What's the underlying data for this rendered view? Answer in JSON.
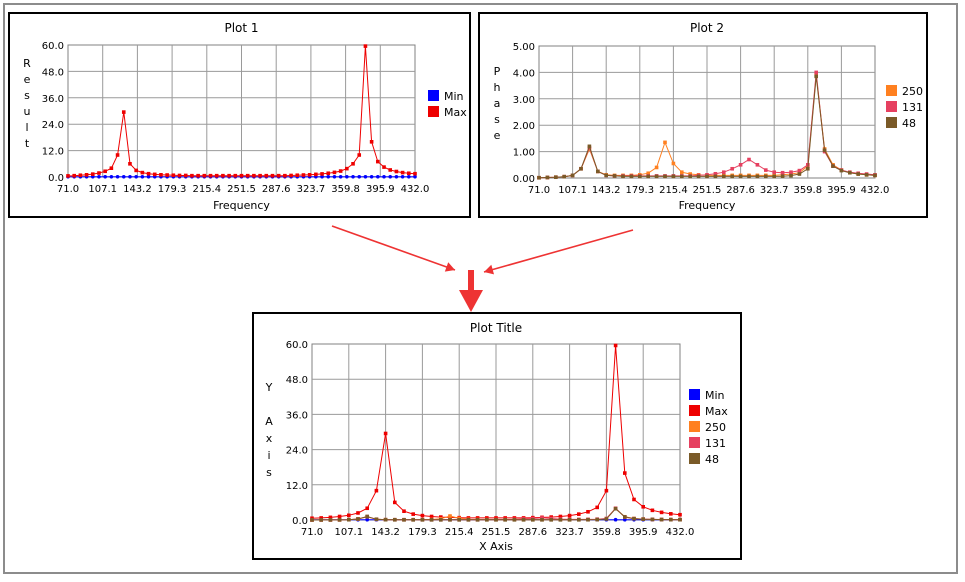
{
  "chart_data": [
    {
      "type": "line",
      "title": "Plot 1",
      "xlabel": "Frequency",
      "ylabel": "Result",
      "ylabel_letters": [
        "R",
        "e",
        "s",
        "u",
        "l",
        "t"
      ],
      "xlim": [
        71.0,
        432.0
      ],
      "ylim": [
        0,
        60
      ],
      "x_ticks": [
        "71.0",
        "107.1",
        "143.2",
        "179.3",
        "215.4",
        "251.5",
        "287.6",
        "323.7",
        "359.8",
        "395.9",
        "432.0"
      ],
      "y_ticks": [
        "0.0",
        "12.0",
        "24.0",
        "36.0",
        "48.0",
        "60.0"
      ],
      "grid": true,
      "legend_position": "right",
      "series": [
        {
          "name": "Min",
          "color": "#0000ff",
          "shape": "circle",
          "values": [
            0.1,
            0.1,
            0.1,
            0.1,
            0.1,
            0.1,
            0.1,
            0.1,
            0.1,
            0.1,
            0.1,
            0.1,
            0.1,
            0.1,
            0.1,
            0.1,
            0.1,
            0.1,
            0.1,
            0.1,
            0.1,
            0.1,
            0.1,
            0.1,
            0.1,
            0.1,
            0.1,
            0.1,
            0.1,
            0.1,
            0.1,
            0.1,
            0.1,
            0.1,
            0.1,
            0.1,
            0.1,
            0.1,
            0.1,
            0.1,
            0.1,
            0.1,
            0.1,
            0.1,
            0.1,
            0.1,
            0.1,
            0.1,
            0.1,
            0.1,
            0.1,
            0.1,
            0.1,
            0.1,
            0.1,
            0.1,
            0.1
          ]
        },
        {
          "name": "Max",
          "color": "#ee0000",
          "shape": "square",
          "values": [
            0.5,
            0.6,
            0.8,
            1.0,
            1.3,
            1.8,
            2.6,
            4.0,
            10.0,
            29.5,
            6.0,
            3.0,
            2.0,
            1.5,
            1.2,
            1.0,
            0.9,
            0.8,
            0.7,
            0.7,
            0.6,
            0.6,
            0.6,
            0.6,
            0.6,
            0.6,
            0.6,
            0.6,
            0.6,
            0.6,
            0.6,
            0.6,
            0.6,
            0.6,
            0.6,
            0.6,
            0.7,
            0.8,
            0.9,
            1.0,
            1.2,
            1.4,
            1.7,
            2.1,
            2.7,
            3.8,
            6.0,
            10.0,
            59.5,
            16.0,
            7.0,
            4.5,
            3.2,
            2.5,
            2.0,
            1.7,
            1.5
          ]
        }
      ],
      "x_count": 57
    },
    {
      "type": "line",
      "title": "Plot 2",
      "xlabel": "Frequency",
      "ylabel": "Phase",
      "ylabel_letters": [
        "P",
        "h",
        "a",
        "s",
        "e"
      ],
      "xlim": [
        71.0,
        432.0
      ],
      "ylim": [
        0,
        5
      ],
      "x_ticks": [
        "71.0",
        "107.1",
        "143.2",
        "179.3",
        "215.4",
        "251.5",
        "287.6",
        "323.7",
        "359.8",
        "395.9",
        "432.0"
      ],
      "y_ticks": [
        "0.00",
        "1.00",
        "2.00",
        "3.00",
        "4.00",
        "5.00"
      ],
      "grid": true,
      "legend_position": "right",
      "series": [
        {
          "name": "250",
          "color": "#ff8020",
          "shape": "square",
          "values": [
            0.01,
            0.02,
            0.03,
            0.05,
            0.1,
            0.35,
            1.1,
            0.25,
            0.12,
            0.1,
            0.1,
            0.1,
            0.12,
            0.18,
            0.4,
            1.35,
            0.55,
            0.22,
            0.15,
            0.12,
            0.1,
            0.1,
            0.1,
            0.1,
            0.1,
            0.1,
            0.1,
            0.1,
            0.1,
            0.12,
            0.15,
            0.2,
            0.45,
            3.9,
            1.1,
            0.5,
            0.3,
            0.2,
            0.15,
            0.12,
            0.1
          ]
        },
        {
          "name": "131",
          "color": "#e64060",
          "shape": "square",
          "values": [
            0.01,
            0.02,
            0.03,
            0.05,
            0.1,
            0.35,
            1.15,
            0.25,
            0.1,
            0.08,
            0.08,
            0.08,
            0.08,
            0.08,
            0.08,
            0.08,
            0.08,
            0.08,
            0.08,
            0.1,
            0.12,
            0.16,
            0.22,
            0.35,
            0.5,
            0.7,
            0.5,
            0.3,
            0.22,
            0.2,
            0.22,
            0.28,
            0.5,
            4.0,
            1.0,
            0.45,
            0.3,
            0.22,
            0.18,
            0.15,
            0.12
          ]
        },
        {
          "name": "48",
          "color": "#7a5a28",
          "shape": "square",
          "values": [
            0.01,
            0.02,
            0.03,
            0.05,
            0.1,
            0.35,
            1.2,
            0.25,
            0.1,
            0.08,
            0.06,
            0.06,
            0.06,
            0.06,
            0.06,
            0.06,
            0.06,
            0.06,
            0.06,
            0.06,
            0.06,
            0.06,
            0.06,
            0.06,
            0.06,
            0.06,
            0.06,
            0.06,
            0.06,
            0.07,
            0.09,
            0.15,
            0.35,
            3.85,
            1.05,
            0.45,
            0.28,
            0.2,
            0.15,
            0.12,
            0.1
          ]
        }
      ],
      "x_count": 41
    },
    {
      "type": "line",
      "title": "Plot Title",
      "xlabel": "X Axis",
      "ylabel": "Y Axis",
      "ylabel_letters": [
        "Y",
        "",
        "A",
        "x",
        "i",
        "s"
      ],
      "xlim": [
        71.0,
        432.0
      ],
      "ylim": [
        0,
        60
      ],
      "x_ticks": [
        "71.0",
        "107.1",
        "143.2",
        "179.3",
        "215.4",
        "251.5",
        "287.6",
        "323.7",
        "359.8",
        "395.9",
        "432.0"
      ],
      "y_ticks": [
        "0.0",
        "12.0",
        "24.0",
        "36.0",
        "48.0",
        "60.0"
      ],
      "grid": true,
      "legend_position": "right",
      "series": [
        {
          "name": "Min",
          "color": "#0000ff",
          "shape": "circle",
          "values": [
            0.1,
            0.1,
            0.1,
            0.1,
            0.1,
            0.1,
            0.1,
            0.1,
            0.1,
            0.1,
            0.1,
            0.1,
            0.1,
            0.1,
            0.1,
            0.1,
            0.1,
            0.1,
            0.1,
            0.1,
            0.1,
            0.1,
            0.1,
            0.1,
            0.1,
            0.1,
            0.1,
            0.1,
            0.1,
            0.1,
            0.1,
            0.1,
            0.1,
            0.1,
            0.1,
            0.1,
            0.1,
            0.1,
            0.1,
            0.1,
            0.1
          ]
        },
        {
          "name": "Max",
          "color": "#ee0000",
          "shape": "square",
          "values": [
            0.6,
            0.7,
            0.9,
            1.2,
            1.6,
            2.4,
            4.0,
            10.0,
            29.5,
            6.0,
            3.0,
            2.0,
            1.5,
            1.2,
            1.0,
            0.9,
            0.8,
            0.7,
            0.7,
            0.7,
            0.7,
            0.7,
            0.7,
            0.7,
            0.8,
            0.9,
            1.0,
            1.2,
            1.5,
            2.0,
            2.8,
            4.3,
            10.0,
            59.5,
            16.0,
            7.0,
            4.5,
            3.3,
            2.6,
            2.1,
            1.8
          ]
        },
        {
          "name": "250",
          "color": "#ff8020",
          "shape": "square",
          "values": [
            0.01,
            0.02,
            0.03,
            0.05,
            0.1,
            0.35,
            1.1,
            0.25,
            0.12,
            0.1,
            0.1,
            0.1,
            0.12,
            0.18,
            0.4,
            1.35,
            0.55,
            0.22,
            0.15,
            0.12,
            0.1,
            0.1,
            0.1,
            0.1,
            0.1,
            0.1,
            0.1,
            0.1,
            0.1,
            0.12,
            0.15,
            0.2,
            0.45,
            3.9,
            1.1,
            0.5,
            0.3,
            0.2,
            0.15,
            0.12,
            0.1
          ]
        },
        {
          "name": "131",
          "color": "#e64060",
          "shape": "square",
          "values": [
            0.01,
            0.02,
            0.03,
            0.05,
            0.1,
            0.35,
            1.15,
            0.25,
            0.1,
            0.08,
            0.08,
            0.08,
            0.08,
            0.08,
            0.08,
            0.08,
            0.08,
            0.08,
            0.08,
            0.1,
            0.12,
            0.16,
            0.22,
            0.35,
            0.5,
            0.7,
            0.5,
            0.3,
            0.22,
            0.2,
            0.22,
            0.28,
            0.5,
            4.0,
            1.0,
            0.45,
            0.3,
            0.22,
            0.18,
            0.15,
            0.12
          ]
        },
        {
          "name": "48",
          "color": "#7a5a28",
          "shape": "square",
          "values": [
            0.01,
            0.02,
            0.03,
            0.05,
            0.1,
            0.35,
            1.2,
            0.25,
            0.1,
            0.08,
            0.06,
            0.06,
            0.06,
            0.06,
            0.06,
            0.06,
            0.06,
            0.06,
            0.06,
            0.06,
            0.06,
            0.06,
            0.06,
            0.06,
            0.06,
            0.06,
            0.06,
            0.06,
            0.06,
            0.07,
            0.09,
            0.15,
            0.35,
            3.85,
            1.05,
            0.45,
            0.28,
            0.2,
            0.15,
            0.12,
            0.1
          ]
        }
      ],
      "x_count": 41
    }
  ],
  "arrow_color": "#ee3333"
}
